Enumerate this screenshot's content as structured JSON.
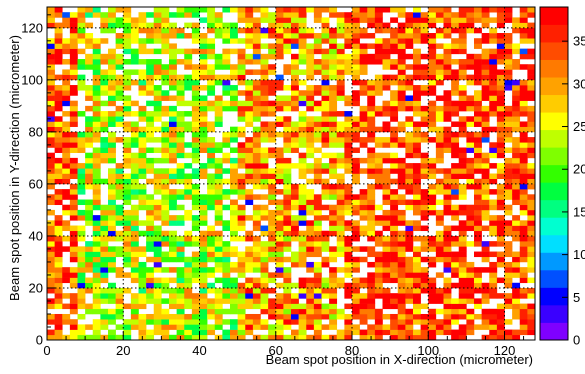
{
  "chart_data": {
    "type": "heatmap",
    "xlabel": "Beam spot position in X-direction (micrometer)",
    "ylabel": "Beam spot position in Y-direction (micrometer)",
    "xlim": [
      0,
      128
    ],
    "ylim": [
      0,
      128
    ],
    "x_ticks": [
      0,
      20,
      40,
      60,
      80,
      100,
      120
    ],
    "y_ticks": [
      0,
      20,
      40,
      60,
      80,
      100,
      120
    ],
    "bin_size": 2,
    "grid": true,
    "grid_style": "dotted",
    "z_range": [
      0,
      39
    ],
    "colorbar_ticks": [
      0,
      5,
      10,
      15,
      20,
      25,
      30,
      35
    ],
    "colorbar_bands": [
      "#7f00ff",
      "#3a00ff",
      "#0000ff",
      "#0050ff",
      "#0099ff",
      "#00dfff",
      "#00ffd0",
      "#00ff80",
      "#00ff40",
      "#33ff00",
      "#7fff00",
      "#bfff00",
      "#ffff00",
      "#ffcc00",
      "#ffa200",
      "#ff7a00",
      "#ff4c00",
      "#ff2000",
      "#ff0000"
    ],
    "empty_bin_color": "#ffffff",
    "description_regions": [
      {
        "x_range": [
          0,
          8
        ],
        "y_range": [
          0,
          128
        ],
        "typical_value": 33
      },
      {
        "x_range": [
          8,
          50
        ],
        "y_range": [
          0,
          128
        ],
        "typical_value": 24
      },
      {
        "x_range": [
          50,
          78
        ],
        "y_range": [
          0,
          128
        ],
        "typical_value": 30
      },
      {
        "x_range": [
          78,
          128
        ],
        "y_range": [
          0,
          128
        ],
        "typical_value": 34
      }
    ]
  }
}
